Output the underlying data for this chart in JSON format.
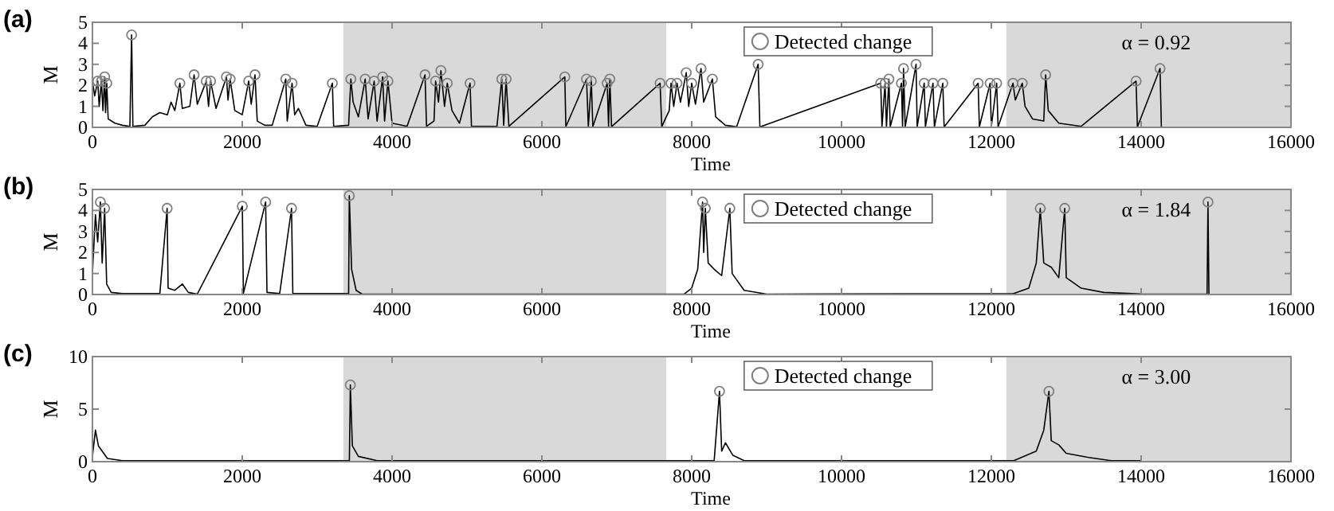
{
  "chart_data": [
    {
      "type": "line",
      "title": "(a)",
      "xlabel": "Time",
      "ylabel": "M",
      "xlim": [
        0,
        16000
      ],
      "xticks": [
        0,
        2000,
        4000,
        6000,
        8000,
        10000,
        12000,
        14000,
        16000
      ],
      "ylim": [
        0,
        5
      ],
      "yticks": [
        0,
        1,
        2,
        3,
        4,
        5
      ],
      "legend": "top",
      "annotations": [
        "α = 0.92"
      ],
      "bands": [
        {
          "axis": "x",
          "from": 3350,
          "to": 7660,
          "color": "#d9d9d9"
        },
        {
          "axis": "x",
          "from": 12200,
          "to": 16000,
          "color": "#d9d9d9"
        }
      ],
      "series": [
        {
          "color": "#000000",
          "x": [
            0,
            30,
            71,
            90,
            120,
            140,
            163,
            175,
            191,
            210,
            300,
            400,
            500,
            523,
            540,
            700,
            800,
            900,
            1000,
            1050,
            1100,
            1167,
            1200,
            1300,
            1357,
            1400,
            1520,
            1550,
            1577,
            1650,
            1789,
            1810,
            1838,
            1900,
            2000,
            2086,
            2120,
            2170,
            2200,
            2300,
            2400,
            2581,
            2600,
            2665,
            2700,
            2750,
            2850,
            3000,
            3203,
            3220,
            3420,
            3450,
            3480,
            3550,
            3641,
            3680,
            3761,
            3800,
            3874,
            3900,
            3945,
            4000,
            4200,
            4440,
            4460,
            4560,
            4581,
            4620,
            4652,
            4700,
            4737,
            4800,
            4900,
            5041,
            5060,
            5400,
            5465,
            5490,
            5522,
            5560,
            6306,
            6320,
            6596,
            6620,
            6660,
            6680,
            6872,
            6890,
            6907,
            6930,
            7578,
            7600,
            7700,
            7724,
            7760,
            7804,
            7850,
            7927,
            7960,
            8000,
            8050,
            8124,
            8160,
            8276,
            8320,
            8450,
            8600,
            8887,
            8910,
            10523,
            10540,
            10581,
            10600,
            10632,
            10650,
            10800,
            10815,
            10828,
            10850,
            10995,
            11010,
            11104,
            11120,
            11221,
            11240,
            11352,
            11370,
            11824,
            11840,
            11984,
            12000,
            12071,
            12090,
            12289,
            12320,
            12413,
            12450,
            12550,
            12700,
            12725,
            12760,
            12900,
            13200,
            13932,
            13950,
            14252,
            14270
          ],
          "values": [
            2.2,
            1.5,
            2.2,
            1.0,
            2.2,
            0.8,
            2.4,
            0.7,
            2.1,
            0.4,
            0.2,
            0.1,
            0.05,
            4.4,
            0.05,
            0.1,
            0.5,
            0.7,
            0.6,
            1.2,
            0.8,
            2.1,
            0.9,
            1.0,
            2.5,
            1.1,
            2.2,
            1.0,
            2.2,
            0.9,
            2.4,
            1.3,
            2.3,
            0.8,
            0.6,
            2.2,
            1.1,
            2.5,
            0.3,
            0.1,
            0.1,
            2.3,
            0.3,
            2.1,
            0.6,
            0.9,
            0.1,
            0.05,
            2.1,
            0.05,
            0.1,
            2.3,
            1.2,
            0.5,
            2.3,
            0.4,
            2.2,
            0.3,
            2.4,
            0.3,
            2.2,
            0.2,
            0.05,
            2.5,
            0.05,
            0.3,
            2.2,
            1.2,
            2.7,
            1.0,
            2.1,
            0.8,
            0.2,
            2.1,
            0.05,
            0.05,
            2.3,
            0.1,
            2.3,
            0.05,
            2.4,
            0.03,
            2.3,
            0.03,
            2.2,
            0.03,
            2.1,
            0.05,
            2.3,
            0.03,
            2.1,
            0.03,
            0.8,
            2.1,
            1.0,
            2.1,
            1.2,
            2.6,
            1.0,
            2.1,
            1.1,
            2.8,
            1.2,
            2.3,
            0.5,
            0.1,
            0.03,
            3.0,
            0.02,
            2.1,
            0.02,
            2.1,
            0.02,
            2.3,
            0.02,
            2.1,
            0.02,
            2.8,
            0.02,
            3.0,
            0.02,
            2.1,
            0.02,
            2.1,
            0.02,
            2.1,
            0.02,
            2.1,
            0.02,
            2.1,
            0.02,
            2.1,
            0.02,
            2.1,
            1.3,
            2.1,
            1.0,
            0.4,
            0.3,
            2.5,
            0.8,
            0.2,
            0.05,
            2.2,
            0.02,
            2.8,
            0.02
          ]
        },
        {
          "type": "scatter",
          "name": "Detected change",
          "color": "#808080",
          "marker": "circle",
          "x": [
            71,
            120,
            163,
            191,
            523,
            1167,
            1357,
            1520,
            1577,
            1789,
            1838,
            2086,
            2170,
            2581,
            2665,
            3203,
            3450,
            3641,
            3761,
            3874,
            3945,
            4440,
            4581,
            4652,
            4737,
            5041,
            5465,
            5522,
            6306,
            6596,
            6660,
            6872,
            6907,
            7578,
            7724,
            7804,
            7927,
            8000,
            8124,
            8276,
            8887,
            10523,
            10581,
            10632,
            10800,
            10828,
            10995,
            11104,
            11221,
            11352,
            11824,
            11984,
            12071,
            12289,
            12413,
            12725,
            13932,
            14252
          ],
          "values": [
            2.2,
            2.2,
            2.4,
            2.1,
            4.4,
            2.1,
            2.5,
            2.2,
            2.2,
            2.4,
            2.3,
            2.2,
            2.5,
            2.3,
            2.1,
            2.1,
            2.3,
            2.3,
            2.2,
            2.4,
            2.2,
            2.5,
            2.2,
            2.7,
            2.1,
            2.1,
            2.3,
            2.3,
            2.4,
            2.3,
            2.2,
            2.1,
            2.3,
            2.1,
            2.1,
            2.1,
            2.6,
            2.1,
            2.8,
            2.3,
            3.0,
            2.1,
            2.1,
            2.3,
            2.1,
            2.8,
            3.0,
            2.1,
            2.1,
            2.1,
            2.1,
            2.1,
            2.1,
            2.1,
            2.1,
            2.5,
            2.2,
            2.8
          ]
        }
      ]
    },
    {
      "type": "line",
      "title": "(b)",
      "xlabel": "Time",
      "ylabel": "M",
      "xlim": [
        0,
        16000
      ],
      "xticks": [
        0,
        2000,
        4000,
        6000,
        8000,
        10000,
        12000,
        14000,
        16000
      ],
      "ylim": [
        0,
        5
      ],
      "yticks": [
        0,
        1,
        2,
        3,
        4,
        5
      ],
      "legend": "top",
      "annotations": [
        "α = 1.84"
      ],
      "bands": [
        {
          "axis": "x",
          "from": 3350,
          "to": 7660,
          "color": "#d9d9d9"
        },
        {
          "axis": "x",
          "from": 12200,
          "to": 16000,
          "color": "#d9d9d9"
        }
      ],
      "series": [
        {
          "color": "#000000",
          "x": [
            0,
            40,
            70,
            106,
            130,
            163,
            190,
            250,
            400,
            900,
            997,
            1010,
            1100,
            1200,
            1280,
            1400,
            2001,
            2015,
            2312,
            2330,
            2500,
            2658,
            2675,
            3420,
            3429,
            3460,
            3520,
            3600,
            7900,
            8000,
            8080,
            8145,
            8160,
            8182,
            8220,
            8300,
            8400,
            8509,
            8540,
            8700,
            9000,
            12300,
            12500,
            12600,
            12653,
            12700,
            12800,
            12900,
            12980,
            13000,
            13200,
            13500,
            14000,
            14880,
            14892,
            14905
          ],
          "values": [
            1.0,
            3.8,
            2.5,
            4.4,
            1.5,
            4.1,
            0.5,
            0.1,
            0.05,
            0.05,
            4.1,
            0.3,
            0.2,
            0.5,
            0.1,
            0.02,
            4.2,
            0.05,
            4.4,
            0.1,
            0.05,
            4.1,
            0.05,
            0.05,
            4.7,
            1.2,
            0.2,
            0.02,
            0.02,
            0.3,
            1.2,
            4.4,
            2.0,
            4.1,
            1.5,
            1.2,
            0.9,
            4.1,
            1.0,
            0.2,
            0.02,
            0.05,
            0.3,
            1.5,
            4.1,
            1.5,
            1.3,
            0.8,
            4.1,
            0.8,
            0.3,
            0.1,
            0.03,
            0.02,
            4.4,
            0.02
          ]
        },
        {
          "type": "scatter",
          "name": "Detected change",
          "color": "#808080",
          "marker": "circle",
          "x": [
            106,
            163,
            997,
            2001,
            2312,
            2658,
            3429,
            8145,
            8182,
            8509,
            12653,
            12980,
            14892
          ],
          "values": [
            4.4,
            4.1,
            4.1,
            4.2,
            4.4,
            4.1,
            4.7,
            4.4,
            4.1,
            4.1,
            4.1,
            4.1,
            4.4
          ]
        }
      ]
    },
    {
      "type": "line",
      "title": "(c)",
      "xlabel": "Time",
      "ylabel": "M",
      "xlim": [
        0,
        16000
      ],
      "xticks": [
        0,
        2000,
        4000,
        6000,
        8000,
        10000,
        12000,
        14000,
        16000
      ],
      "ylim": [
        0,
        10
      ],
      "yticks": [
        0,
        5,
        10
      ],
      "legend": "top",
      "annotations": [
        "α = 3.00"
      ],
      "bands": [
        {
          "axis": "x",
          "from": 3350,
          "to": 7660,
          "color": "#d9d9d9"
        },
        {
          "axis": "x",
          "from": 12200,
          "to": 16000,
          "color": "#d9d9d9"
        }
      ],
      "series": [
        {
          "color": "#000000",
          "x": [
            0,
            40,
            80,
            200,
            400,
            3430,
            3443,
            3470,
            3550,
            3800,
            4000,
            8300,
            8371,
            8400,
            8450,
            8550,
            8700,
            9000,
            12300,
            12600,
            12700,
            12769,
            12800,
            12900,
            13000,
            13300,
            13600,
            14000
          ],
          "values": [
            0.5,
            3.0,
            1.5,
            0.3,
            0.1,
            0.1,
            7.3,
            1.5,
            0.5,
            0.1,
            0.1,
            0.1,
            6.7,
            1.0,
            1.8,
            0.6,
            0.1,
            0.1,
            0.1,
            1.0,
            3.0,
            6.7,
            2.0,
            1.6,
            0.8,
            0.4,
            0.1,
            0.1
          ]
        },
        {
          "type": "scatter",
          "name": "Detected change",
          "color": "#808080",
          "marker": "circle",
          "x": [
            3443,
            8371,
            12769
          ],
          "values": [
            7.3,
            6.7,
            6.7
          ]
        }
      ]
    }
  ]
}
